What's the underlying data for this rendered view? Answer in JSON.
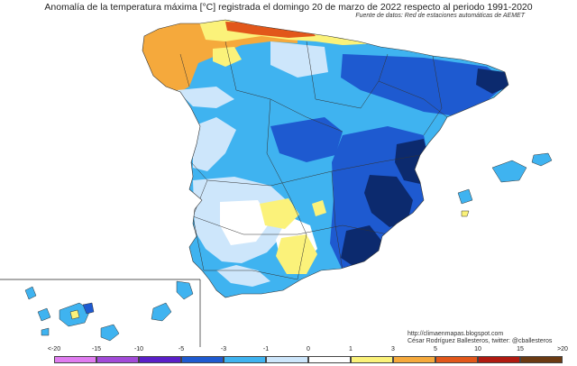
{
  "map": {
    "title": "Anomalía de la temperatura máxima [°C] registrada el domingo 20 de marzo de 2022 respecto al periodo 1991-2020",
    "source": "Fuente de datos: Red de estaciones automáticas de AEMET",
    "credit_url": "http://climaenmapas.blogspot.com",
    "credit_author": "César Rodríguez Ballesteros, twitter: @cballesteros",
    "legend": {
      "tick_labels": [
        "<-20",
        "-15",
        "-10",
        "-5",
        "-3",
        "-1",
        "0",
        "1",
        "3",
        "5",
        "10",
        "15",
        ">20"
      ],
      "bins": [
        {
          "from": "<-20",
          "to": "-15",
          "color": "#e07cf0"
        },
        {
          "from": "-15",
          "to": "-10",
          "color": "#a24ad8"
        },
        {
          "from": "-10",
          "to": "-5",
          "color": "#5a1fc8"
        },
        {
          "from": "-5",
          "to": "-3",
          "color": "#1e5ad0"
        },
        {
          "from": "-3",
          "to": "-1",
          "color": "#3fb3f0"
        },
        {
          "from": "-1",
          "to": "0",
          "color": "#cde6fb"
        },
        {
          "from": "0",
          "to": "1",
          "color": "#ffffff"
        },
        {
          "from": "1",
          "to": "3",
          "color": "#fbf27a"
        },
        {
          "from": "3",
          "to": "5",
          "color": "#f5a93c"
        },
        {
          "from": "5",
          "to": "10",
          "color": "#e2571a"
        },
        {
          "from": "10",
          "to": "15",
          "color": "#b01a10"
        },
        {
          "from": "15",
          "to": ">20",
          "color": "#6b3a12"
        }
      ]
    }
  }
}
